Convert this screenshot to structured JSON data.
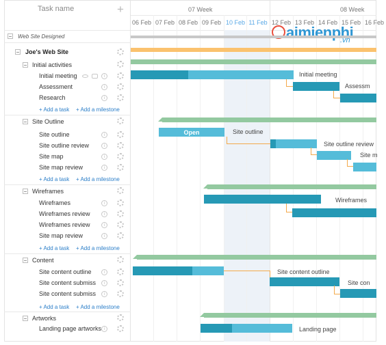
{
  "header": {
    "task_name": "Task name",
    "add": "+"
  },
  "timeline": {
    "weeks": [
      "07 Week",
      "08 Week"
    ],
    "days": [
      "06 Feb",
      "07 Feb",
      "08 Feb",
      "09 Feb",
      "10 Feb",
      "11 Feb",
      "12 Feb",
      "13 Feb",
      "14 Feb",
      "15 Feb",
      "16 Feb"
    ],
    "highlighted_days": [
      "10 Feb",
      "11 Feb"
    ]
  },
  "tree": {
    "root": "Web Site Designed",
    "project": "Joe's Web Site",
    "groups": [
      {
        "name": "Initial activities",
        "tasks": [
          "Initial meeting",
          "Assessment",
          "Research"
        ]
      },
      {
        "name": "Site Outline",
        "tasks": [
          "Site outline",
          "Site outline review",
          "Site map",
          "Site map review"
        ]
      },
      {
        "name": "Wireframes",
        "tasks": [
          "Wireframes",
          "Wireframes review",
          "Wireframes review",
          "Site map review"
        ]
      },
      {
        "name": "Content",
        "tasks": [
          "Site content outline",
          "Site content submiss",
          "Site content submiss"
        ]
      },
      {
        "name": "Artworks",
        "tasks": [
          "Landing page artworks"
        ]
      }
    ],
    "add_task": "+ Add a task",
    "add_milestone": "+ Add a milestone"
  },
  "bars": {
    "initial_meeting": "Initial meeting",
    "assessment": "Assessm",
    "open": "Open",
    "site_outline": "Site outline",
    "site_outline_review": "Site outline review",
    "site_map": "Site m",
    "wireframes": "Wireframes",
    "site_content_outline": "Site content outline",
    "site_content": "Site con",
    "landing_page": "Landing page"
  },
  "watermark": {
    "text": "aimienphi",
    "suffix": ".vn"
  },
  "colors": {
    "bar": "#55bcd9",
    "bar_done": "#2699b5",
    "group": "#93c9a0",
    "project": "#fbc26e",
    "link": "#2b7ec8",
    "connector": "#f3a94a"
  },
  "icons": [
    "plus-icon",
    "collapse-icon",
    "gear-icon",
    "info-icon",
    "eye-icon",
    "comment-icon"
  ]
}
